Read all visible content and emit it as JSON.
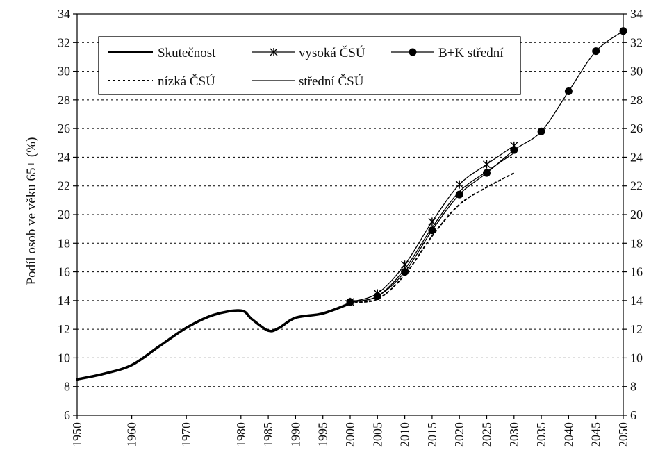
{
  "chart_data": {
    "type": "line",
    "ylabel": "Podíl osob ve věku 65+ (%)",
    "xlabel": "",
    "title": "",
    "ylim": [
      6,
      34
    ],
    "y_ticks": [
      6,
      8,
      10,
      12,
      14,
      16,
      18,
      20,
      22,
      24,
      26,
      28,
      30,
      32,
      34
    ],
    "x_ticks": [
      1950,
      1960,
      1970,
      1980,
      1985,
      1990,
      1995,
      2000,
      2005,
      2010,
      2015,
      2020,
      2025,
      2030,
      2035,
      2040,
      2045,
      2050
    ],
    "x_ticks_labels": [
      "1950",
      "1960",
      "1970",
      "1980",
      "1985",
      "1990",
      "1995",
      "2000",
      "2005",
      "2010",
      "2015",
      "2020",
      "2025",
      "2030",
      "2035",
      "2040",
      "2045",
      "2050"
    ],
    "y_ticks_labels": [
      "6",
      "8",
      "10",
      "12",
      "14",
      "16",
      "18",
      "20",
      "22",
      "24",
      "26",
      "28",
      "30",
      "32",
      "34"
    ],
    "grid": "horizontal dotted",
    "legend_placement": "top",
    "series": [
      {
        "name": "Skutečnost",
        "style": "thick",
        "x": [
          1950,
          1955,
          1960,
          1965,
          1970,
          1975,
          1980,
          1982,
          1985,
          1987,
          1990,
          1995,
          2000
        ],
        "values": [
          8.5,
          8.9,
          9.5,
          10.8,
          12.1,
          13.0,
          13.3,
          12.7,
          11.9,
          12.1,
          12.8,
          13.1,
          13.8
        ]
      },
      {
        "name": "vysoká ČSÚ",
        "style": "thin-star",
        "x": [
          2000,
          2005,
          2010,
          2015,
          2020,
          2025,
          2030
        ],
        "values": [
          13.9,
          14.5,
          16.5,
          19.5,
          22.1,
          23.5,
          24.8
        ]
      },
      {
        "name": "B+K střední",
        "style": "thin-dot",
        "x": [
          2000,
          2005,
          2010,
          2015,
          2020,
          2025,
          2030,
          2035,
          2040,
          2045,
          2050
        ],
        "values": [
          13.9,
          14.3,
          16.0,
          18.9,
          21.4,
          22.9,
          24.5,
          25.8,
          28.6,
          31.4,
          32.8
        ]
      },
      {
        "name": "nízká ČSÚ",
        "style": "dotted",
        "x": [
          2000,
          2005,
          2010,
          2015,
          2020,
          2025,
          2030
        ],
        "values": [
          13.9,
          14.1,
          15.8,
          18.5,
          20.7,
          21.9,
          22.9
        ]
      },
      {
        "name": "střední ČSÚ",
        "style": "thin",
        "x": [
          2000,
          2005,
          2010,
          2015,
          2020,
          2025,
          2030
        ],
        "values": [
          13.9,
          14.3,
          16.2,
          19.1,
          21.6,
          23.0,
          24.3
        ]
      }
    ]
  }
}
